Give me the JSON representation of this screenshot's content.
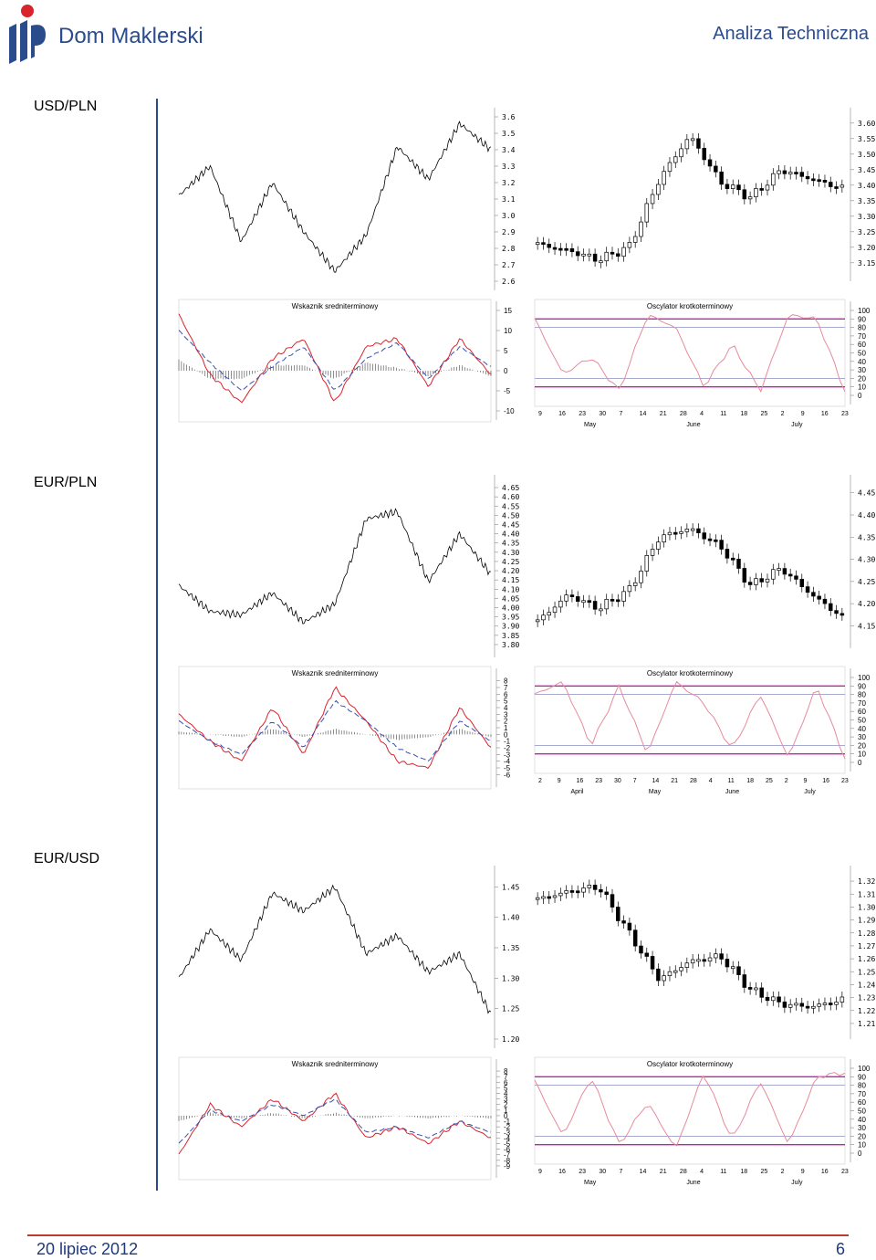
{
  "header": {
    "brand": "Dom Maklerski",
    "report_title": "Analiza Techniczna",
    "colors": {
      "brand": "#2b4c8c",
      "logo_red": "#d9232d"
    }
  },
  "footer": {
    "date": "20 lipiec 2012",
    "page": "6"
  },
  "sections": [
    {
      "pair": "USD/PLN"
    },
    {
      "pair": "EUR/PLN"
    },
    {
      "pair": "EUR/USD"
    }
  ],
  "labels": {
    "macd_title": "Wskaznik sredniterminowy",
    "osc_title": "Oscylator krotkoterminowy"
  },
  "chart_data": [
    {
      "id": "usdpln_long",
      "type": "line",
      "pair": "USD/PLN",
      "ylim": [
        2.6,
        3.6
      ],
      "yticks": [
        "3.6",
        "3.5",
        "3.4",
        "3.3",
        "3.2",
        "3.1",
        "3.0",
        "2.9",
        "2.8",
        "2.7",
        "2.6"
      ],
      "x": [
        0,
        10,
        20,
        30,
        40,
        50,
        60,
        70,
        80,
        90,
        100
      ],
      "y": [
        3.12,
        3.3,
        2.84,
        3.2,
        2.9,
        2.66,
        2.88,
        3.42,
        3.22,
        3.56,
        3.4
      ]
    },
    {
      "id": "usdpln_macd",
      "type": "line",
      "ylim": [
        -10,
        15
      ],
      "yticks": [
        "15",
        "10",
        "5",
        "0",
        "-5",
        "-10"
      ],
      "x": [
        0,
        10,
        20,
        30,
        40,
        50,
        60,
        70,
        80,
        90,
        100
      ],
      "macd": [
        14,
        -1,
        -8,
        3,
        8,
        -8,
        6,
        8,
        -4,
        8,
        -1
      ],
      "signal": [
        10,
        2,
        -5,
        1,
        6,
        -5,
        3,
        7,
        -2,
        6,
        1
      ]
    },
    {
      "id": "usdpln_short",
      "type": "bar",
      "ylim": [
        3.12,
        3.62
      ],
      "yticks": [
        "3.60",
        "3.55",
        "3.50",
        "3.45",
        "3.40",
        "3.35",
        "3.30",
        "3.25",
        "3.20",
        "3.15"
      ],
      "x": [
        0,
        10,
        20,
        30,
        40,
        50,
        60,
        70,
        80,
        90,
        100
      ],
      "y": [
        3.21,
        3.19,
        3.16,
        3.2,
        3.42,
        3.56,
        3.41,
        3.36,
        3.45,
        3.42,
        3.39
      ]
    },
    {
      "id": "usdpln_osc",
      "type": "line",
      "ylim": [
        0,
        100
      ],
      "yticks": [
        "100",
        "90",
        "80",
        "70",
        "60",
        "50",
        "40",
        "30",
        "20",
        "10",
        "0"
      ],
      "x_ticks": [
        "9",
        "16",
        "23",
        "30",
        "7",
        "14",
        "21",
        "28",
        "4",
        "11",
        "18",
        "25",
        "2",
        "9",
        "16",
        "23"
      ],
      "months": [
        "May",
        "June",
        "July"
      ],
      "y": [
        90,
        25,
        45,
        5,
        95,
        80,
        10,
        60,
        5,
        95,
        90,
        5
      ]
    },
    {
      "id": "eurpln_long",
      "type": "line",
      "pair": "EUR/PLN",
      "ylim": [
        3.78,
        4.67
      ],
      "yticks": [
        "4.65",
        "4.60",
        "4.55",
        "4.50",
        "4.45",
        "4.40",
        "4.35",
        "4.30",
        "4.25",
        "4.20",
        "4.15",
        "4.10",
        "4.05",
        "4.00",
        "3.95",
        "3.90",
        "3.85",
        "3.80"
      ],
      "x": [
        0,
        10,
        20,
        30,
        40,
        50,
        60,
        70,
        80,
        90,
        100
      ],
      "y": [
        4.12,
        3.98,
        3.96,
        4.08,
        3.92,
        4.02,
        4.48,
        4.52,
        4.14,
        4.4,
        4.18
      ]
    },
    {
      "id": "eurpln_macd",
      "type": "line",
      "ylim": [
        -6.5,
        8.5
      ],
      "yticks": [
        "8",
        "7",
        "6",
        "5",
        "4",
        "3",
        "2",
        "1",
        "0",
        "-1",
        "-2",
        "-3",
        "-4",
        "-5",
        "-6"
      ],
      "x": [
        0,
        10,
        20,
        30,
        40,
        50,
        60,
        70,
        80,
        90,
        100
      ],
      "macd": [
        3,
        -1,
        -4,
        4,
        -3,
        7,
        2,
        -4,
        -5,
        4,
        -2
      ],
      "signal": [
        2,
        -1,
        -3,
        2,
        -2,
        5,
        2,
        -2,
        -4,
        2,
        -1
      ]
    },
    {
      "id": "eurpln_short",
      "type": "bar",
      "ylim": [
        4.12,
        4.47
      ],
      "yticks": [
        "4.45",
        "4.40",
        "4.35",
        "4.30",
        "4.25",
        "4.20",
        "4.15"
      ],
      "x": [
        0,
        10,
        20,
        30,
        40,
        50,
        60,
        70,
        80,
        90,
        100
      ],
      "y": [
        4.16,
        4.22,
        4.19,
        4.23,
        4.35,
        4.37,
        4.33,
        4.24,
        4.28,
        4.22,
        4.17
      ]
    },
    {
      "id": "eurpln_osc",
      "type": "line",
      "ylim": [
        0,
        100
      ],
      "yticks": [
        "100",
        "90",
        "80",
        "70",
        "60",
        "50",
        "40",
        "30",
        "20",
        "10",
        "0"
      ],
      "x_ticks": [
        "2",
        "9",
        "16",
        "23",
        "30",
        "7",
        "14",
        "21",
        "28",
        "4",
        "11",
        "18",
        "25",
        "2",
        "9",
        "16",
        "23"
      ],
      "months": [
        "April",
        "May",
        "June",
        "July"
      ],
      "y": [
        80,
        95,
        20,
        90,
        10,
        95,
        70,
        15,
        80,
        5,
        90,
        5
      ]
    },
    {
      "id": "eurusd_long",
      "type": "line",
      "pair": "EUR/USD",
      "ylim": [
        1.2,
        1.47
      ],
      "yticks": [
        "1.45",
        "1.40",
        "1.35",
        "1.30",
        "1.25",
        "1.20"
      ],
      "x": [
        0,
        10,
        20,
        30,
        40,
        50,
        60,
        70,
        80,
        90,
        100
      ],
      "y": [
        1.3,
        1.38,
        1.33,
        1.44,
        1.41,
        1.45,
        1.34,
        1.37,
        1.31,
        1.34,
        1.24
      ]
    },
    {
      "id": "eurusd_macd",
      "type": "line",
      "ylim": [
        -9.5,
        8.5
      ],
      "yticks": [
        "8",
        "7",
        "6",
        "5",
        "4",
        "3",
        "2",
        "1",
        "0",
        "-1",
        "-2",
        "-3",
        "-4",
        "-5",
        "-6",
        "-7",
        "-8",
        "-9"
      ],
      "x": [
        0,
        10,
        20,
        30,
        40,
        50,
        60,
        70,
        80,
        90,
        100
      ],
      "macd": [
        -7,
        2,
        -2,
        3,
        -1,
        4,
        -4,
        -2,
        -5,
        -1,
        -4
      ],
      "signal": [
        -5,
        1,
        -1,
        2,
        0,
        3,
        -3,
        -2,
        -4,
        -1,
        -3
      ]
    },
    {
      "id": "eurusd_short",
      "type": "bar",
      "ylim": [
        1.205,
        1.325
      ],
      "yticks": [
        "1.32",
        "1.31",
        "1.30",
        "1.29",
        "1.28",
        "1.27",
        "1.26",
        "1.25",
        "1.24",
        "1.23",
        "1.22",
        "1.21"
      ],
      "x": [
        0,
        10,
        20,
        30,
        40,
        50,
        60,
        70,
        80,
        90,
        100
      ],
      "y": [
        1.306,
        1.312,
        1.316,
        1.28,
        1.244,
        1.258,
        1.262,
        1.236,
        1.225,
        1.223,
        1.228
      ]
    },
    {
      "id": "eurusd_osc",
      "type": "line",
      "ylim": [
        0,
        100
      ],
      "yticks": [
        "100",
        "90",
        "80",
        "70",
        "60",
        "50",
        "40",
        "30",
        "20",
        "10",
        "0"
      ],
      "x_ticks": [
        "9",
        "16",
        "23",
        "30",
        "7",
        "14",
        "21",
        "28",
        "4",
        "11",
        "18",
        "25",
        "2",
        "9",
        "16",
        "23"
      ],
      "months": [
        "May",
        "June",
        "July"
      ],
      "y": [
        85,
        20,
        90,
        10,
        60,
        5,
        95,
        15,
        85,
        10,
        90,
        95
      ]
    }
  ]
}
